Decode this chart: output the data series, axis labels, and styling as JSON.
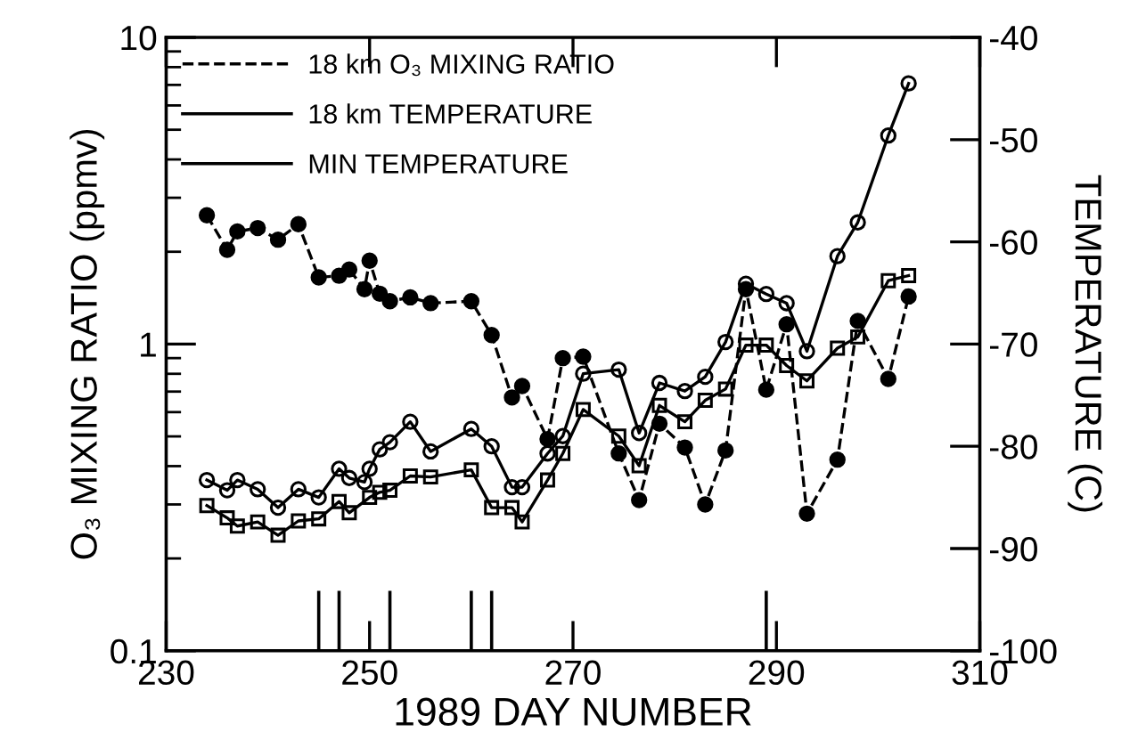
{
  "chart_data": {
    "type": "line",
    "xlabel": "1989 DAY NUMBER",
    "ylabel": "O₃ MIXING RATIO (ppmv)",
    "y2label": "TEMPERATURE (C)",
    "x": [
      234,
      236,
      237,
      239,
      241,
      243,
      245,
      247,
      248,
      249.5,
      250,
      251,
      252,
      254,
      256,
      260,
      262,
      264,
      265,
      267.5,
      269,
      271,
      274.5,
      276.5,
      278.5,
      281,
      283,
      285,
      287,
      289,
      291,
      293,
      296,
      298,
      301,
      303
    ],
    "series": [
      {
        "name": "18 km O₃ MIXING RATIO",
        "color": "#000000",
        "marker": "circle",
        "line_style": "dashed",
        "values": [
          2.63,
          2.03,
          2.33,
          2.39,
          2.19,
          2.46,
          1.65,
          1.67,
          1.75,
          1.51,
          1.87,
          1.46,
          1.38,
          1.42,
          1.36,
          1.38,
          1.07,
          0.67,
          0.73,
          0.49,
          0.9,
          0.91,
          0.44,
          0.31,
          0.55,
          0.46,
          0.3,
          0.45,
          1.51,
          0.71,
          1.16,
          0.28,
          0.42,
          1.19,
          0.77,
          1.43
        ]
      },
      {
        "name": "18 km TEMPERATURE",
        "color": "#000000",
        "marker": "circle",
        "line_style": "solid",
        "axis": "y2",
        "values": [
          -83.3,
          -84.3,
          -83.3,
          -84.2,
          -86.0,
          -84.2,
          -85.0,
          -82.2,
          -83.1,
          -83.5,
          -82.2,
          -80.3,
          -79.6,
          -77.6,
          -80.5,
          -78.3,
          -80.0,
          -84.0,
          -84.0,
          -80.7,
          -79.0,
          -72.9,
          -72.5,
          -78.7,
          -73.8,
          -74.6,
          -73.2,
          -69.8,
          -64.1,
          -65.1,
          -66.0,
          -70.7,
          -61.4,
          -58.1,
          -49.6,
          -44.5
        ]
      },
      {
        "name": "MIN TEMPERATURE",
        "color": "#000000",
        "marker": "square",
        "line_style": "solid",
        "axis": "y2",
        "x": [
          234,
          236,
          237,
          239,
          241,
          243,
          245,
          247,
          248,
          250,
          251,
          252,
          254,
          256,
          260,
          262,
          264,
          265,
          267.5,
          269,
          271,
          274.5,
          276.5,
          278.5,
          281,
          283,
          285,
          287,
          289,
          291,
          293,
          296,
          298,
          301,
          303
        ],
        "values": [
          -85.8,
          -87.0,
          -87.8,
          -87.4,
          -88.7,
          -87.3,
          -87.1,
          -85.4,
          -86.5,
          -85.0,
          -84.5,
          -84.3,
          -82.9,
          -83.0,
          -82.3,
          -86.0,
          -86.0,
          -87.4,
          -83.3,
          -80.7,
          -76.4,
          -79.0,
          -81.9,
          -76.0,
          -77.6,
          -75.5,
          -74.4,
          -70.1,
          -70.1,
          -72.1,
          -73.6,
          -70.4,
          -69.3,
          -63.8,
          -63.3
        ]
      }
    ],
    "log": "y",
    "xlim": [
      230,
      310
    ],
    "xticks": [
      230,
      250,
      270,
      290,
      310
    ],
    "ylim": [
      0.1,
      10
    ],
    "yticks": [
      0.1,
      1,
      10
    ],
    "y2lim": [
      -100,
      -40
    ],
    "y2ticks": [
      -100,
      -90,
      -80,
      -70,
      -60,
      -50,
      -40
    ],
    "ref_lines": [
      {
        "axis": "x",
        "value": 245
      },
      {
        "axis": "x",
        "value": 247
      },
      {
        "axis": "x",
        "value": 252
      },
      {
        "axis": "x",
        "value": 260
      },
      {
        "axis": "x",
        "value": 262
      },
      {
        "axis": "x",
        "value": 289
      }
    ],
    "grid": false,
    "legend": "top left"
  }
}
